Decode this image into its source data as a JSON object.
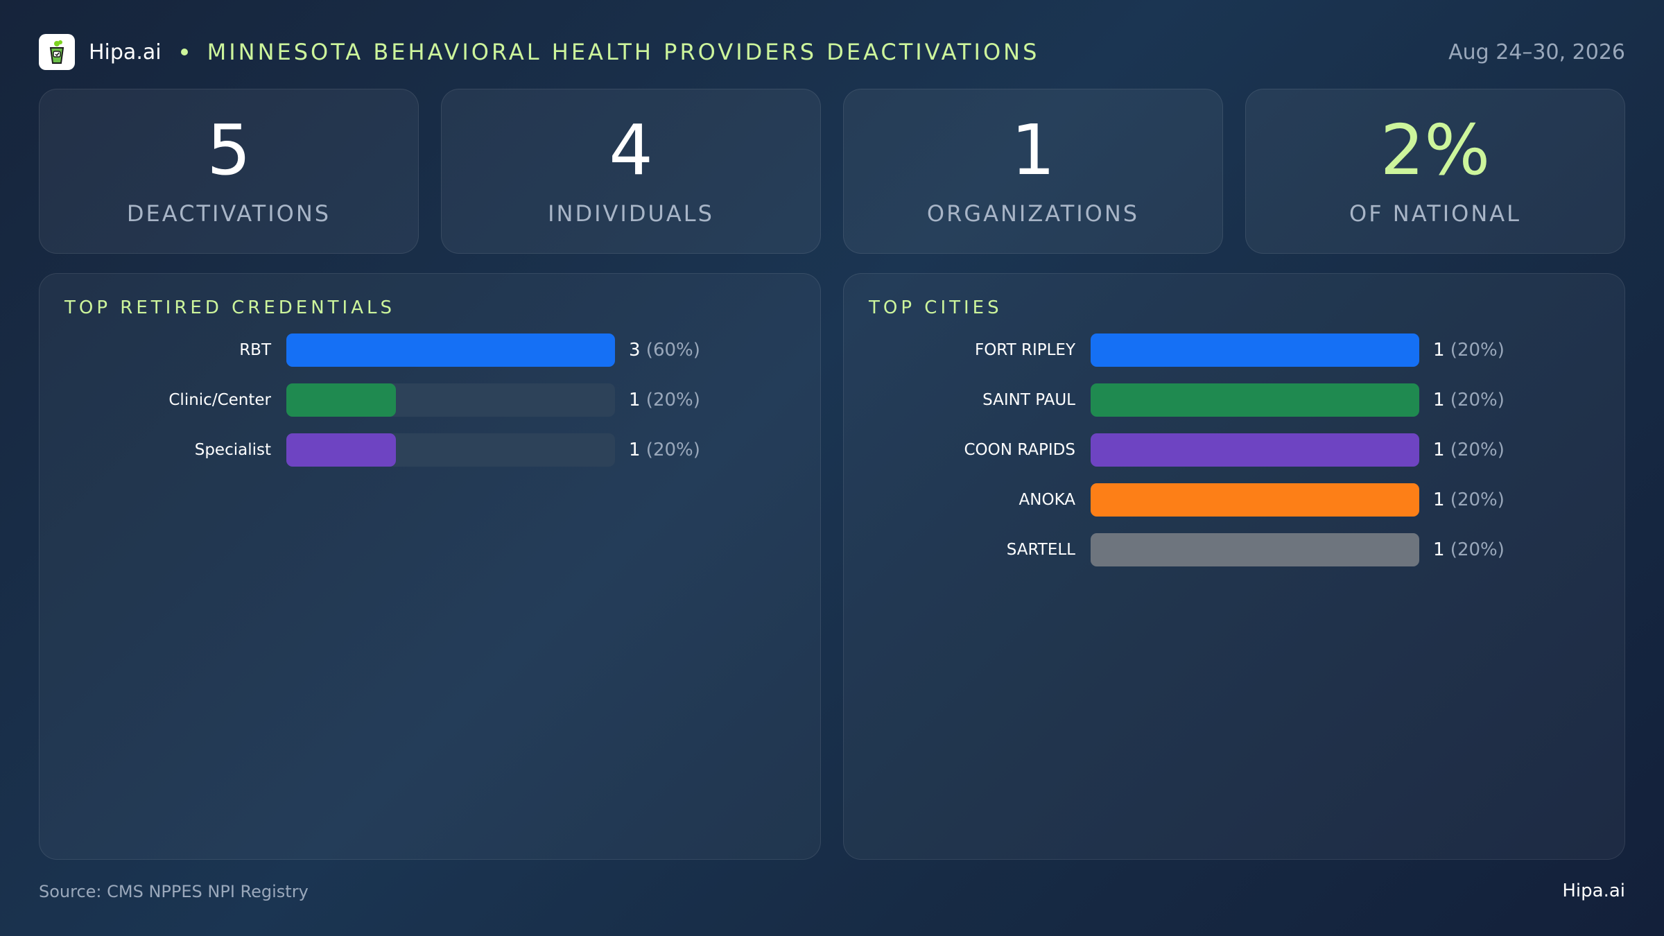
{
  "header": {
    "brand": "Hipa.ai",
    "title": "MINNESOTA BEHAVIORAL HEALTH PROVIDERS DEACTIVATIONS",
    "date_range": "Aug 24–30, 2026"
  },
  "kpis": [
    {
      "value": "5",
      "label": "DEACTIVATIONS"
    },
    {
      "value": "4",
      "label": "INDIVIDUALS"
    },
    {
      "value": "1",
      "label": "ORGANIZATIONS"
    },
    {
      "value": "2%",
      "label": "OF NATIONAL"
    }
  ],
  "colors": {
    "accent": "#cdf59c",
    "track": "#2d4259",
    "bar_blue": "#1570f5",
    "bar_green": "#1f8a50",
    "bar_purple": "#6e44c2",
    "bar_orange": "#fd7f17",
    "bar_gray": "#6e757e"
  },
  "chart_data": [
    {
      "type": "bar",
      "orientation": "horizontal",
      "title": "TOP RETIRED CREDENTIALS",
      "categories": [
        "RBT",
        "Clinic/Center",
        "Specialist"
      ],
      "values": [
        3,
        1,
        1
      ],
      "labels": [
        "3",
        "1",
        "1"
      ],
      "percents": [
        "(60%)",
        "(20%)",
        "(20%)"
      ],
      "max": 3,
      "colors": [
        "#1570f5",
        "#1f8a50",
        "#6e44c2"
      ]
    },
    {
      "type": "bar",
      "orientation": "horizontal",
      "title": "TOP CITIES",
      "categories": [
        "FORT RIPLEY",
        "SAINT PAUL",
        "COON RAPIDS",
        "ANOKA",
        "SARTELL"
      ],
      "values": [
        1,
        1,
        1,
        1,
        1
      ],
      "labels": [
        "1",
        "1",
        "1",
        "1",
        "1"
      ],
      "percents": [
        "(20%)",
        "(20%)",
        "(20%)",
        "(20%)",
        "(20%)"
      ],
      "max": 1,
      "colors": [
        "#1570f5",
        "#1f8a50",
        "#6e44c2",
        "#fd7f17",
        "#6e757e"
      ]
    }
  ],
  "footer": {
    "source": "Source: CMS NPPES NPI Registry",
    "brand": "Hipa.ai"
  }
}
